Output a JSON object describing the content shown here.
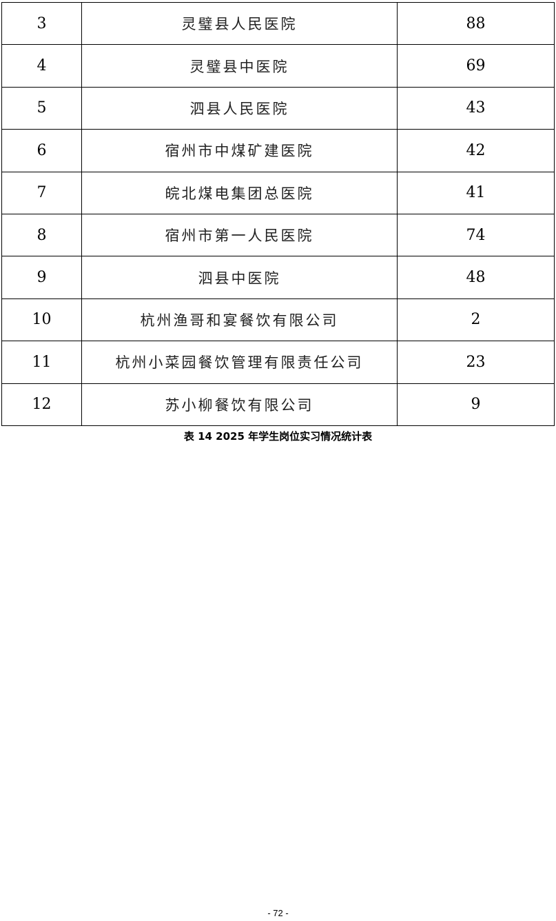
{
  "table": {
    "rows": [
      {
        "no": "3",
        "name": "灵璧县人民医院",
        "count": "88"
      },
      {
        "no": "4",
        "name": "灵璧县中医院",
        "count": "69"
      },
      {
        "no": "5",
        "name": "泗县人民医院",
        "count": "43"
      },
      {
        "no": "6",
        "name": "宿州市中煤矿建医院",
        "count": "42"
      },
      {
        "no": "7",
        "name": "皖北煤电集团总医院",
        "count": "41"
      },
      {
        "no": "8",
        "name": "宿州市第一人民医院",
        "count": "74"
      },
      {
        "no": "9",
        "name": "泗县中医院",
        "count": "48"
      },
      {
        "no": "10",
        "name": "杭州渔哥和宴餐饮有限公司",
        "count": "2"
      },
      {
        "no": "11",
        "name": "杭州小菜园餐饮管理有限责任公司",
        "count": "23"
      },
      {
        "no": "12",
        "name": "苏小柳餐饮有限公司",
        "count": "9"
      }
    ]
  },
  "caption": "表 14 2025 年学生岗位实习情况统计表",
  "page_number": "- 72 -"
}
